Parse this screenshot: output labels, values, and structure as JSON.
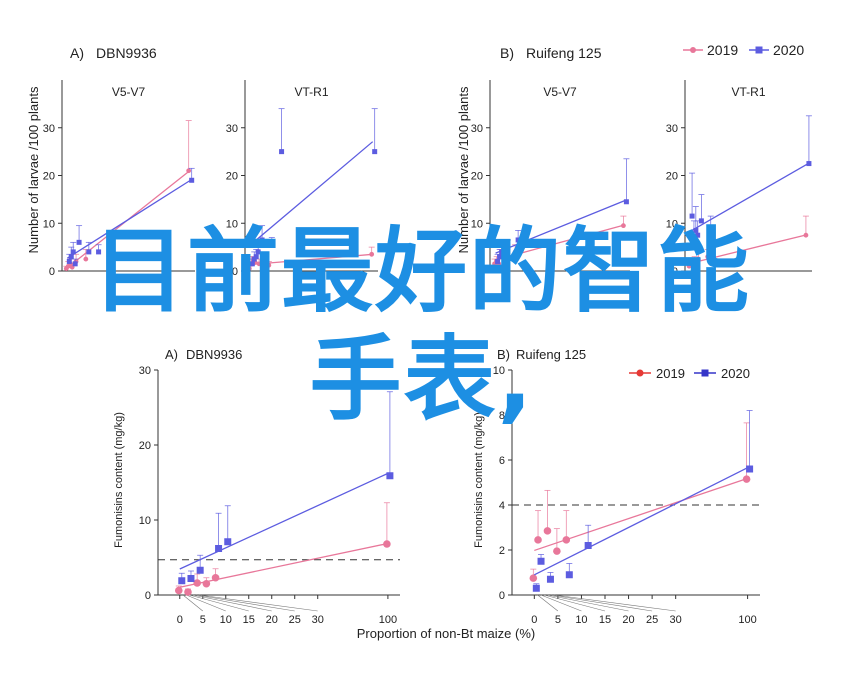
{
  "colors": {
    "series_2019": "#e8779a",
    "series_2020": "#5c5ce0",
    "overlay": "#1d8fe3",
    "axis": "#333333",
    "threshold": "#333333"
  },
  "legend": {
    "top": [
      "2019",
      "2020"
    ],
    "bottom": [
      "2019",
      "2020"
    ]
  },
  "top_panels": {
    "ylabel": "Number of larvae /100 plants",
    "xlabel_fragment": "Proportion of non-Bt maize (%)",
    "x_ticks_visible": "10 20 30",
    "groups": [
      {
        "label": "A)",
        "title": "DBN9936"
      },
      {
        "label": "B)",
        "title": "Ruifeng 125"
      }
    ]
  },
  "bottom_panels": {
    "xlabel": "Proportion of non-Bt maize (%)",
    "ylabel": "Fumonisins content (mg/kg)",
    "panels": [
      {
        "label": "A)",
        "title": "DBN9936",
        "yticks": [
          "0",
          "10",
          "20",
          "30"
        ],
        "xticks": [
          "0",
          "5",
          "10",
          "15",
          "20",
          "25",
          "30",
          "100"
        ]
      },
      {
        "label": "B)",
        "title": "Ruifeng 125",
        "yticks": [
          "0",
          "2",
          "4",
          "6",
          "8",
          "10"
        ],
        "xticks": [
          "0",
          "5",
          "10",
          "15",
          "20",
          "25",
          "30",
          "100"
        ]
      }
    ]
  },
  "overlay_text": {
    "line1": "目前最好的智能",
    "line2": "手表,"
  },
  "chart_data": [
    {
      "type": "line",
      "title": "V5-V7",
      "group": "DBN9936",
      "xlabel": "",
      "ylabel": "Number of larvae /100 plants",
      "ylim": [
        0,
        40
      ],
      "yticks": [
        0,
        10,
        20,
        30
      ],
      "series": [
        {
          "name": "2019",
          "x": [
            0,
            1,
            2,
            3,
            5,
            10,
            100
          ],
          "y": [
            0.5,
            1.0,
            1.5,
            0.8,
            2.0,
            2.5,
            21.0
          ],
          "err": [
            0.5,
            1.0,
            1.0,
            0.8,
            1.5,
            2.0,
            10.5
          ]
        },
        {
          "name": "2020",
          "x": [
            0,
            1,
            2,
            3,
            5,
            10,
            15,
            100
          ],
          "y": [
            2.0,
            3.0,
            4.0,
            1.5,
            6.0,
            4.0,
            4.0,
            19.0
          ],
          "err": [
            1.5,
            2.0,
            2.0,
            1.0,
            3.5,
            2.0,
            1.5,
            2.5
          ]
        }
      ]
    },
    {
      "type": "line",
      "title": "VT-R1",
      "group": "DBN9936",
      "xlabel": "",
      "ylabel": "",
      "ylim": [
        0,
        40
      ],
      "yticks": [
        0,
        10,
        20,
        30
      ],
      "series": [
        {
          "name": "2019",
          "x": [
            0,
            1,
            2,
            3,
            5,
            10,
            100
          ],
          "y": [
            0.5,
            1.5,
            2.0,
            1.8,
            1.5,
            1.2,
            3.5
          ],
          "err": [
            0.5,
            1.5,
            1.0,
            1.0,
            1.0,
            0.8,
            1.5
          ]
        },
        {
          "name": "2020",
          "x": [
            0,
            1,
            2,
            3,
            5,
            10,
            15,
            100
          ],
          "y": [
            1.5,
            2.5,
            3.0,
            4.0,
            6.5,
            5.5,
            25.0,
            25.0
          ],
          "err": [
            1.0,
            1.5,
            1.5,
            2.0,
            3.0,
            1.5,
            9.0,
            9.0
          ]
        }
      ]
    },
    {
      "type": "line",
      "title": "V5-V7",
      "group": "Ruifeng 125",
      "xlabel": "",
      "ylabel": "Number of larvae /100 plants",
      "ylim": [
        0,
        40
      ],
      "yticks": [
        0,
        10,
        20,
        30
      ],
      "series": [
        {
          "name": "2019",
          "x": [
            0,
            1,
            2,
            3,
            5,
            10,
            100
          ],
          "y": [
            1.5,
            2.0,
            1.5,
            3.0,
            3.5,
            4.0,
            9.5
          ],
          "err": [
            1.0,
            1.0,
            1.0,
            1.5,
            1.5,
            1.5,
            2.0
          ]
        },
        {
          "name": "2020",
          "x": [
            0,
            1,
            2,
            3,
            5,
            10,
            100
          ],
          "y": [
            2.0,
            3.0,
            4.0,
            4.5,
            5.0,
            6.5,
            14.5
          ],
          "err": [
            1.5,
            1.5,
            2.0,
            2.0,
            1.5,
            2.0,
            9.0
          ]
        }
      ]
    },
    {
      "type": "line",
      "title": "VT-R1",
      "group": "Ruifeng 125",
      "xlabel": "",
      "ylabel": "",
      "ylim": [
        0,
        40
      ],
      "yticks": [
        0,
        10,
        20,
        30
      ],
      "series": [
        {
          "name": "2019",
          "x": [
            0,
            1,
            2,
            3,
            5,
            10,
            100
          ],
          "y": [
            1.0,
            1.5,
            1.0,
            2.0,
            2.5,
            3.0,
            7.5
          ],
          "err": [
            1.0,
            1.0,
            1.0,
            1.0,
            1.5,
            1.5,
            4.0
          ]
        },
        {
          "name": "2020",
          "x": [
            0,
            1,
            2,
            3,
            5,
            10,
            100
          ],
          "y": [
            11.5,
            6.5,
            8.5,
            7.5,
            10.5,
            8.0,
            22.5
          ],
          "err": [
            9.0,
            4.0,
            5.0,
            3.0,
            5.5,
            3.5,
            10.0
          ]
        }
      ]
    },
    {
      "type": "line",
      "title": "DBN9936",
      "group": "A)",
      "xlabel": "Proportion of non-Bt maize (%)",
      "ylabel": "Fumonisins content (mg/kg)",
      "ylim": [
        0,
        30
      ],
      "yticks": [
        0,
        10,
        20,
        30
      ],
      "threshold": 4.7,
      "series": [
        {
          "name": "2019",
          "x": [
            0,
            2,
            4,
            6,
            8,
            100
          ],
          "y": [
            0.6,
            0.4,
            1.6,
            1.5,
            2.3,
            6.8
          ],
          "err": [
            0.6,
            0.4,
            1.2,
            0.8,
            1.2,
            5.5
          ]
        },
        {
          "name": "2020",
          "x": [
            0,
            2,
            4,
            8,
            10,
            100
          ],
          "y": [
            1.9,
            2.2,
            3.3,
            6.2,
            7.1,
            15.9
          ],
          "err": [
            1.0,
            1.0,
            2.0,
            4.7,
            4.8,
            11.2
          ]
        }
      ]
    },
    {
      "type": "line",
      "title": "Ruifeng 125",
      "group": "B)",
      "xlabel": "Proportion of non-Bt maize (%)",
      "ylabel": "Fumonisins content (mg/kg)",
      "ylim": [
        0,
        10
      ],
      "yticks": [
        0,
        2,
        4,
        6,
        8,
        10
      ],
      "threshold": 4.0,
      "series": [
        {
          "name": "2019",
          "x": [
            0,
            1,
            3,
            5,
            7,
            100
          ],
          "y": [
            0.75,
            2.45,
            2.85,
            1.95,
            2.45,
            5.15
          ],
          "err": [
            0.4,
            1.3,
            1.8,
            1.0,
            1.3,
            2.5
          ]
        },
        {
          "name": "2020",
          "x": [
            0,
            1,
            3,
            7,
            11,
            100
          ],
          "y": [
            0.3,
            1.5,
            0.7,
            0.9,
            2.2,
            5.6
          ],
          "err": [
            0.2,
            0.3,
            0.3,
            0.5,
            0.9,
            2.6
          ]
        }
      ]
    }
  ]
}
